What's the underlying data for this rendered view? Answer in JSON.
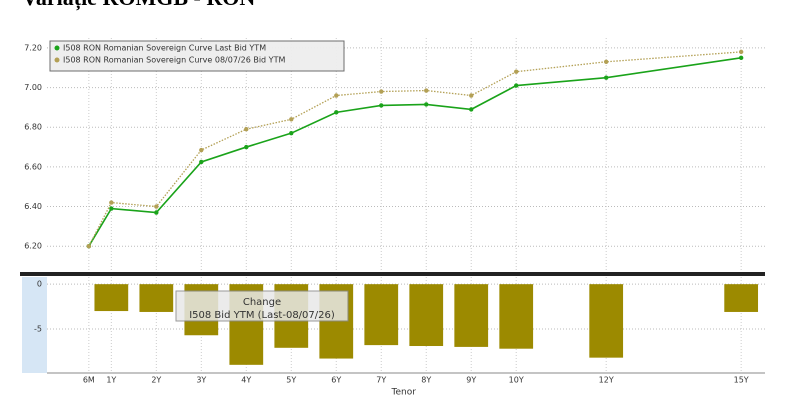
{
  "chart_data": [
    {
      "type": "line",
      "title": "Variație ROMGB - RON",
      "x": [
        0.5,
        1,
        2,
        3,
        4,
        5,
        6,
        7,
        8,
        9,
        10,
        12,
        15
      ],
      "xlim": [
        -0.43,
        15.53
      ],
      "ylim": [
        6.07,
        7.25
      ],
      "yticks": [
        {
          "value": 6.2,
          "label": "6.20"
        },
        {
          "value": 6.4,
          "label": "6.40"
        },
        {
          "value": 6.6,
          "label": "6.60"
        },
        {
          "value": 6.8,
          "label": "6.80"
        },
        {
          "value": 7.0,
          "label": "7.00"
        },
        {
          "value": 7.2,
          "label": "7.20"
        }
      ],
      "grid": true,
      "legend": "upper left",
      "series": [
        {
          "name": "I508 RON Romanian Sovereign Curve Last Bid YTM",
          "color": "#1aa31a",
          "style": "solid",
          "values": [
            6.2,
            6.39,
            6.37,
            6.625,
            6.7,
            6.77,
            6.875,
            6.91,
            6.915,
            6.89,
            7.01,
            7.05,
            7.15
          ]
        },
        {
          "name": "I508 RON Romanian Sovereign Curve 08/07/26 Bid YTM",
          "color": "#b3a055",
          "style": "dotted",
          "values": [
            6.2,
            6.42,
            6.4,
            6.685,
            6.79,
            6.84,
            6.96,
            6.98,
            6.985,
            6.96,
            7.08,
            7.13,
            7.18
          ]
        }
      ]
    },
    {
      "type": "bar",
      "legend_title": "Change",
      "xlabel": "Tenor",
      "x": [
        0.5,
        1,
        2,
        3,
        4,
        5,
        6,
        7,
        8,
        9,
        10,
        12,
        15
      ],
      "xlim": [
        -0.43,
        15.53
      ],
      "xticks": [
        {
          "value": 0.5,
          "label": "6M"
        },
        {
          "value": 1,
          "label": "1Y"
        },
        {
          "value": 2,
          "label": "2Y"
        },
        {
          "value": 3,
          "label": "3Y"
        },
        {
          "value": 4,
          "label": "4Y"
        },
        {
          "value": 5,
          "label": "5Y"
        },
        {
          "value": 6,
          "label": "6Y"
        },
        {
          "value": 7,
          "label": "7Y"
        },
        {
          "value": 8,
          "label": "8Y"
        },
        {
          "value": 9,
          "label": "9Y"
        },
        {
          "value": 10,
          "label": "10Y"
        },
        {
          "value": 12,
          "label": "12Y"
        },
        {
          "value": 15,
          "label": "15Y"
        }
      ],
      "ylim": [
        -9.8,
        0.8
      ],
      "yticks": [
        0,
        -5
      ],
      "grid": true,
      "series": [
        {
          "name": "I508 Bid YTM (Last-08/07/26)",
          "color": "#9c8a00",
          "values": [
            0,
            -3,
            -3.1,
            -5.7,
            -9,
            -7.1,
            -8.3,
            -6.8,
            -6.9,
            -7,
            -7.2,
            -8.2,
            -3.1
          ]
        }
      ]
    }
  ]
}
